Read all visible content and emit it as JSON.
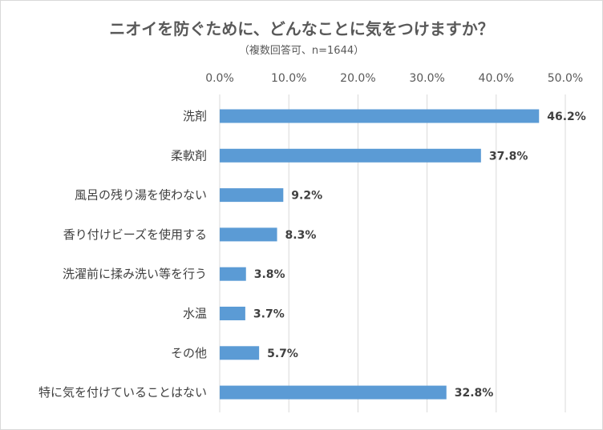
{
  "chart_data": {
    "type": "bar",
    "orientation": "horizontal",
    "title": "ニオイを防ぐために、どんなことに気をつけますか？",
    "subtitle": "（複数回答可、n=1644）",
    "categories": [
      "洗剤",
      "柔軟剤",
      "風呂の残り湯を使わない",
      "香り付けビーズを使用する",
      "洗濯前に揉み洗い等を行う",
      "水温",
      "その他",
      "特に気を付けていることはない"
    ],
    "values": [
      46.2,
      37.8,
      9.2,
      8.3,
      3.8,
      3.7,
      5.7,
      32.8
    ],
    "data_labels": [
      "46.2%",
      "37.8%",
      "9.2%",
      "8.3%",
      "3.8%",
      "3.7%",
      "5.7%",
      "32.8%"
    ],
    "x_ticks": [
      "0.0%",
      "10.0%",
      "20.0%",
      "30.0%",
      "40.0%",
      "50.0%"
    ],
    "xlim": [
      0,
      50
    ],
    "xaxis_position": "top",
    "grid": true,
    "legend": false,
    "bar_color": "#5b9bd5",
    "text_color": "#595959",
    "grid_color": "#d9d9d9"
  }
}
